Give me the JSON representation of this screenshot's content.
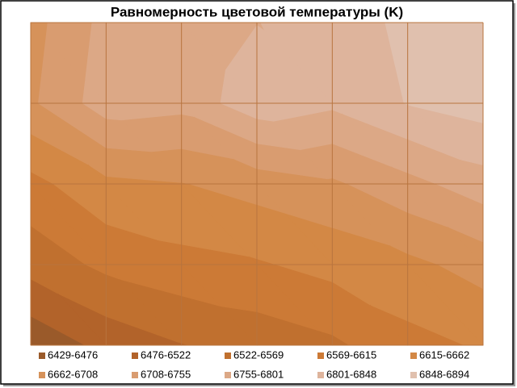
{
  "chart_data": {
    "type": "contour",
    "title": "Равномерность цветовой температуры (K)",
    "z": [
      [
        6690,
        6770,
        6760,
        6800,
        6820,
        6860,
        6880
      ],
      [
        6700,
        6780,
        6770,
        6830,
        6810,
        6850,
        6870
      ],
      [
        6600,
        6650,
        6660,
        6680,
        6700,
        6740,
        6780
      ],
      [
        6540,
        6580,
        6600,
        6610,
        6630,
        6650,
        6680
      ],
      [
        6440,
        6490,
        6520,
        6540,
        6560,
        6600,
        6620
      ]
    ],
    "series": [
      {
        "name": "6429-6476",
        "min": 6429,
        "max": 6476,
        "color": "#9a5a2a"
      },
      {
        "name": "6476-6522",
        "min": 6476,
        "max": 6522,
        "color": "#b2632a"
      },
      {
        "name": "6522-6569",
        "min": 6522,
        "max": 6569,
        "color": "#c0702f"
      },
      {
        "name": "6569-6615",
        "min": 6569,
        "max": 6615,
        "color": "#cc7a36"
      },
      {
        "name": "6615-6662",
        "min": 6615,
        "max": 6662,
        "color": "#d38845"
      },
      {
        "name": "6662-6708",
        "min": 6662,
        "max": 6708,
        "color": "#d6925a"
      },
      {
        "name": "6708-6755",
        "min": 6708,
        "max": 6755,
        "color": "#d99c70"
      },
      {
        "name": "6755-6801",
        "min": 6755,
        "max": 6801,
        "color": "#dca886"
      },
      {
        "name": "6801-6848",
        "min": 6801,
        "max": 6848,
        "color": "#deb49c"
      },
      {
        "name": "6848-6894",
        "min": 6848,
        "max": 6894,
        "color": "#e0c0ae"
      }
    ]
  }
}
